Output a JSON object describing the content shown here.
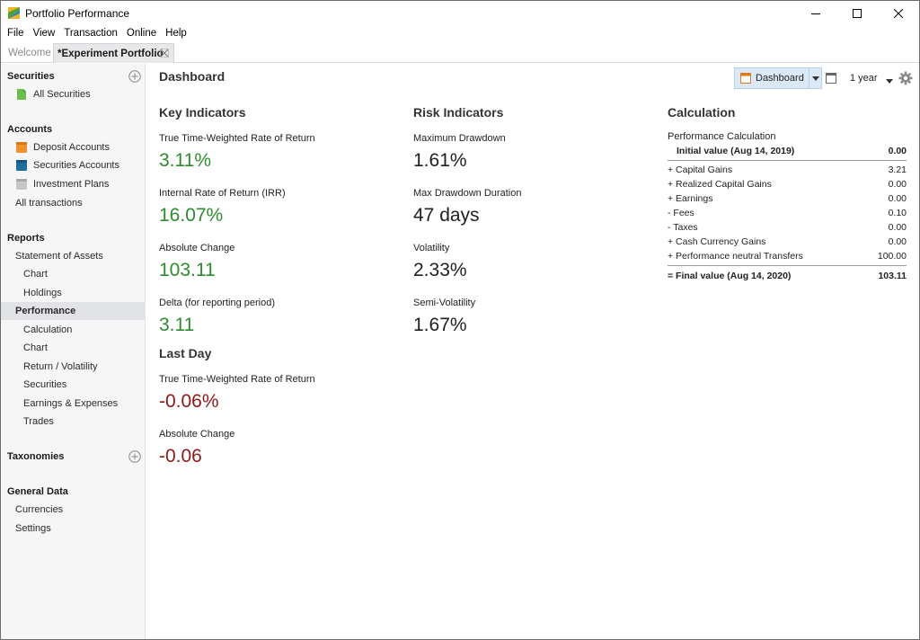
{
  "window": {
    "title": "Portfolio Performance"
  },
  "menu": [
    "File",
    "View",
    "Transaction",
    "Online",
    "Help"
  ],
  "tabs": {
    "welcome": "Welcome",
    "portfolio": "*Experiment Portfolio"
  },
  "sidebar": {
    "securities_header": "Securities",
    "all_securities": "All Securities",
    "accounts_header": "Accounts",
    "deposit_accounts": "Deposit Accounts",
    "securities_accounts": "Securities Accounts",
    "investment_plans": "Investment Plans",
    "all_transactions": "All transactions",
    "reports_header": "Reports",
    "statement_of_assets": "Statement of Assets",
    "soa_chart": "Chart",
    "soa_holdings": "Holdings",
    "performance": "Performance",
    "perf_calculation": "Calculation",
    "perf_chart": "Chart",
    "perf_return_volatility": "Return / Volatility",
    "perf_securities": "Securities",
    "perf_earnings_expenses": "Earnings & Expenses",
    "perf_trades": "Trades",
    "taxonomies_header": "Taxonomies",
    "general_data_header": "General Data",
    "currencies": "Currencies",
    "settings": "Settings"
  },
  "main": {
    "title": "Dashboard",
    "toolbar": {
      "dashboard_label": "Dashboard",
      "period_label": "1 year"
    },
    "key_indicators": {
      "heading": "Key Indicators",
      "ttwror_label": "True Time-Weighted Rate of Return",
      "ttwror_value": "3.11%",
      "irr_label": "Internal Rate of Return (IRR)",
      "irr_value": "16.07%",
      "abs_change_label": "Absolute Change",
      "abs_change_value": "103.11",
      "delta_label": "Delta (for reporting period)",
      "delta_value": "3.11"
    },
    "last_day": {
      "heading": "Last Day",
      "ttwror_label": "True Time-Weighted Rate of Return",
      "ttwror_value": "-0.06%",
      "abs_change_label": "Absolute Change",
      "abs_change_value": "-0.06"
    },
    "risk_indicators": {
      "heading": "Risk Indicators",
      "max_drawdown_label": "Maximum Drawdown",
      "max_drawdown_value": "1.61%",
      "max_dd_duration_label": "Max Drawdown Duration",
      "max_dd_duration_value": "47 days",
      "volatility_label": "Volatility",
      "volatility_value": "2.33%",
      "semi_volatility_label": "Semi-Volatility",
      "semi_volatility_value": "1.67%"
    },
    "calculation": {
      "heading": "Calculation",
      "subtitle": "Performance Calculation",
      "initial_label": "Initial value (Aug 14, 2019)",
      "initial_value": "0.00",
      "rows": [
        {
          "label": "+ Capital Gains",
          "value": "3.21"
        },
        {
          "label": "+ Realized Capital Gains",
          "value": "0.00"
        },
        {
          "label": "+ Earnings",
          "value": "0.00"
        },
        {
          "label": "-  Fees",
          "value": "0.10"
        },
        {
          "label": "-  Taxes",
          "value": "0.00"
        },
        {
          "label": "+ Cash Currency Gains",
          "value": "0.00"
        },
        {
          "label": "+ Performance neutral Transfers",
          "value": "100.00"
        }
      ],
      "final_label": "= Final value (Aug 14, 2020)",
      "final_value": "103.11"
    }
  },
  "colors": {
    "positive": "#2e8b2e",
    "negative": "#8b1a1a",
    "selection": "#e2e3e7"
  }
}
